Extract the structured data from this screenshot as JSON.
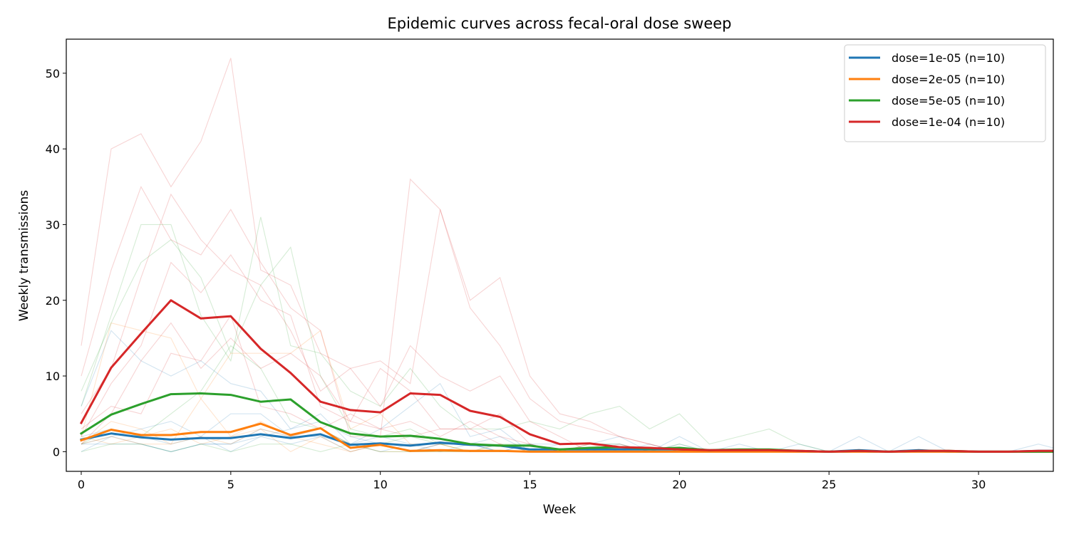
{
  "chart_data": {
    "type": "line",
    "title": "Epidemic curves across fecal-oral dose sweep",
    "xlabel": "Week",
    "ylabel": "Weekly transmissions",
    "xlim": [
      -0.5,
      32.5
    ],
    "ylim": [
      -2.6,
      54.5
    ],
    "xticks": [
      0,
      5,
      10,
      15,
      20,
      25,
      30
    ],
    "yticks": [
      0,
      10,
      20,
      30,
      40,
      50
    ],
    "grid": false,
    "legend_position": "top-right",
    "x": [
      0,
      1,
      2,
      3,
      4,
      5,
      6,
      7,
      8,
      9,
      10,
      11,
      12,
      13,
      14,
      15,
      16,
      17,
      18,
      19,
      20,
      21,
      22,
      23,
      24,
      25,
      26,
      27,
      28,
      29,
      30,
      31,
      32,
      33
    ],
    "series": [
      {
        "name": "dose=1e-05 (n=10)",
        "color": "#1f77b4",
        "values": [
          1.6,
          2.4,
          1.9,
          1.6,
          1.8,
          1.8,
          2.3,
          1.8,
          2.3,
          0.9,
          1.1,
          0.8,
          1.2,
          0.9,
          0.8,
          0.3,
          0.3,
          0.3,
          0.3,
          0.3,
          0.3,
          0.1,
          0.1,
          0.1,
          0.1,
          0.0,
          0.2,
          0.0,
          0.2,
          0.0,
          0.0,
          0.0,
          0.1,
          0.1
        ]
      },
      {
        "name": "dose=2e-05 (n=10)",
        "color": "#ff7f0e",
        "values": [
          1.5,
          2.9,
          2.2,
          2.2,
          2.6,
          2.6,
          3.7,
          2.2,
          3.1,
          0.5,
          0.9,
          0.1,
          0.2,
          0.1,
          0.1,
          0.0,
          0.0,
          0.0,
          0.0,
          0.0,
          0.0,
          0.0,
          0.0,
          0.0,
          0.0,
          0.0,
          0.0,
          0.0,
          0.0,
          0.0,
          0.0,
          0.0,
          0.0,
          0.0
        ]
      },
      {
        "name": "dose=5e-05 (n=10)",
        "color": "#2ca02c",
        "values": [
          2.4,
          4.9,
          6.3,
          7.6,
          7.7,
          7.5,
          6.6,
          6.9,
          3.9,
          2.4,
          2.0,
          2.1,
          1.7,
          1.0,
          0.8,
          0.8,
          0.3,
          0.5,
          0.6,
          0.4,
          0.5,
          0.2,
          0.3,
          0.3,
          0.1,
          0.0,
          0.1,
          0.0,
          0.1,
          0.1,
          0.0,
          0.0,
          0.0,
          0.0
        ]
      },
      {
        "name": "dose=1e-04 (n=10)",
        "color": "#d62728",
        "values": [
          3.8,
          11.1,
          15.6,
          20.0,
          17.6,
          17.9,
          13.6,
          10.4,
          6.6,
          5.5,
          5.2,
          7.7,
          7.5,
          5.4,
          4.6,
          2.3,
          1.0,
          1.1,
          0.6,
          0.5,
          0.3,
          0.2,
          0.2,
          0.2,
          0.1,
          0.0,
          0.1,
          0.0,
          0.1,
          0.1,
          0.0,
          0.0,
          0.1,
          0.1
        ]
      }
    ],
    "runs": [
      {
        "series": 0,
        "values": [
          6,
          16,
          12,
          10,
          12,
          9,
          8,
          3,
          5,
          1,
          3,
          6,
          9,
          2,
          3,
          0,
          1,
          1,
          2,
          0,
          0,
          0,
          1,
          0,
          1,
          0,
          2,
          0,
          2,
          0,
          0,
          0,
          1,
          0
        ]
      },
      {
        "series": 0,
        "values": [
          1,
          2,
          3,
          4,
          2,
          5,
          5,
          2,
          3,
          1,
          2,
          1,
          0,
          1,
          0,
          1,
          0,
          0,
          0,
          0,
          2,
          0,
          0,
          0,
          0,
          0,
          0,
          0,
          0,
          0,
          0,
          0,
          0,
          0
        ]
      },
      {
        "series": 0,
        "values": [
          1,
          1,
          1,
          0,
          1,
          1,
          2,
          1,
          2,
          0,
          1,
          0,
          1,
          1,
          0,
          0,
          0,
          0,
          0,
          0,
          0,
          0,
          0,
          0,
          0,
          0,
          0,
          0,
          0,
          0,
          0,
          0,
          0,
          0
        ]
      },
      {
        "series": 0,
        "values": [
          0,
          2,
          1,
          0,
          1,
          1,
          3,
          2,
          2,
          1,
          0,
          1,
          1,
          1,
          2,
          0,
          0,
          0,
          0,
          1,
          0,
          0,
          0,
          0,
          0,
          0,
          0,
          0,
          0,
          0,
          0,
          0,
          0,
          0
        ]
      },
      {
        "series": 0,
        "values": [
          2,
          3,
          2,
          1,
          2,
          0,
          2,
          3,
          4,
          2,
          1,
          0,
          1,
          1,
          0,
          1,
          1,
          1,
          1,
          0,
          1,
          0,
          0,
          0,
          0,
          0,
          0,
          0,
          0,
          0,
          0,
          0,
          0,
          0
        ]
      },
      {
        "series": 1,
        "values": [
          2,
          17,
          16,
          15,
          7,
          13,
          13,
          13,
          16,
          3,
          5,
          1,
          1,
          0,
          1,
          0,
          0,
          0,
          0,
          0,
          0,
          0,
          0,
          0,
          0,
          0,
          0,
          0,
          0,
          0,
          0,
          0,
          0,
          0
        ]
      },
      {
        "series": 1,
        "values": [
          1,
          4,
          3,
          1,
          7,
          2,
          4,
          2,
          1,
          0,
          1,
          0,
          0,
          0,
          0,
          0,
          0,
          0,
          0,
          0,
          0,
          0,
          0,
          0,
          0,
          0,
          0,
          0,
          0,
          0,
          0,
          0,
          0,
          0
        ]
      },
      {
        "series": 1,
        "values": [
          2,
          1,
          2,
          3,
          1,
          2,
          3,
          2,
          3,
          1,
          0,
          0,
          1,
          0,
          0,
          0,
          0,
          0,
          0,
          0,
          0,
          0,
          0,
          0,
          0,
          0,
          0,
          0,
          0,
          0,
          0,
          0,
          0,
          0
        ]
      },
      {
        "series": 1,
        "values": [
          1,
          2,
          1,
          1,
          2,
          1,
          3,
          0,
          2,
          0,
          1,
          0,
          0,
          0,
          0,
          0,
          0,
          0,
          0,
          0,
          0,
          0,
          0,
          0,
          0,
          0,
          0,
          0,
          0,
          0,
          0,
          0,
          0,
          0
        ]
      },
      {
        "series": 2,
        "values": [
          8,
          17,
          25,
          28,
          23,
          13,
          22,
          27,
          10,
          3,
          2,
          3,
          1,
          1,
          1,
          1,
          0,
          1,
          1,
          0,
          1,
          0,
          0,
          0,
          0,
          0,
          0,
          0,
          0,
          0,
          0,
          0,
          0,
          0
        ]
      },
      {
        "series": 2,
        "values": [
          6,
          18,
          30,
          30,
          18,
          12,
          31,
          14,
          13,
          8,
          6,
          11,
          6,
          3,
          3,
          4,
          3,
          5,
          6,
          3,
          5,
          1,
          2,
          3,
          1,
          0,
          0,
          0,
          0,
          0,
          0,
          0,
          0,
          0
        ]
      },
      {
        "series": 2,
        "values": [
          1,
          3,
          2,
          5,
          8,
          14,
          11,
          4,
          3,
          1,
          1,
          2,
          1,
          0,
          1,
          0,
          0,
          0,
          0,
          0,
          0,
          0,
          0,
          0,
          0,
          0,
          0,
          0,
          0,
          0,
          0,
          0,
          0,
          0
        ]
      },
      {
        "series": 2,
        "values": [
          0,
          1,
          1,
          0,
          1,
          0,
          1,
          1,
          0,
          1,
          0,
          0,
          0,
          0,
          0,
          0,
          0,
          0,
          0,
          0,
          0,
          0,
          0,
          0,
          0,
          0,
          0,
          0,
          0,
          0,
          0,
          0,
          0,
          0
        ]
      },
      {
        "series": 3,
        "values": [
          14,
          40,
          42,
          35,
          41,
          52,
          24,
          22,
          13,
          11,
          12,
          9,
          32,
          19,
          14,
          7,
          4,
          3,
          2,
          1,
          0,
          0,
          0,
          0,
          0,
          0,
          0,
          0,
          0,
          0,
          0,
          0,
          0,
          0
        ]
      },
      {
        "series": 3,
        "values": [
          10,
          24,
          35,
          28,
          26,
          32,
          25,
          19,
          16,
          2,
          2,
          36,
          32,
          20,
          23,
          10,
          5,
          4,
          2,
          1,
          0,
          0,
          0,
          0,
          0,
          0,
          0,
          0,
          0,
          0,
          0,
          0,
          0,
          0
        ]
      },
      {
        "series": 3,
        "values": [
          5,
          11,
          23,
          34,
          28,
          24,
          22,
          16,
          8,
          11,
          6,
          14,
          10,
          8,
          10,
          4,
          2,
          0,
          1,
          0,
          0,
          0,
          0,
          0,
          0,
          0,
          0,
          0,
          0,
          0,
          0,
          0,
          0,
          0
        ]
      },
      {
        "series": 3,
        "values": [
          2,
          9,
          14,
          25,
          21,
          26,
          20,
          18,
          6,
          4,
          11,
          8,
          3,
          3,
          5,
          1,
          0,
          0,
          0,
          0,
          0,
          0,
          0,
          0,
          0,
          0,
          0,
          0,
          0,
          0,
          0,
          0,
          0,
          0
        ]
      },
      {
        "series": 3,
        "values": [
          1,
          5,
          12,
          17,
          11,
          15,
          11,
          13,
          10,
          4,
          3,
          4,
          2,
          4,
          2,
          1,
          0,
          1,
          0,
          0,
          0,
          0,
          0,
          0,
          0,
          0,
          0,
          0,
          0,
          0,
          0,
          0,
          0,
          0
        ]
      },
      {
        "series": 3,
        "values": [
          3,
          6,
          5,
          13,
          12,
          18,
          6,
          5,
          3,
          5,
          3,
          2,
          3,
          3,
          1,
          0,
          0,
          0,
          0,
          0,
          0,
          0,
          0,
          0,
          0,
          0,
          0,
          0,
          0,
          0,
          0,
          0,
          0,
          0
        ]
      }
    ]
  }
}
